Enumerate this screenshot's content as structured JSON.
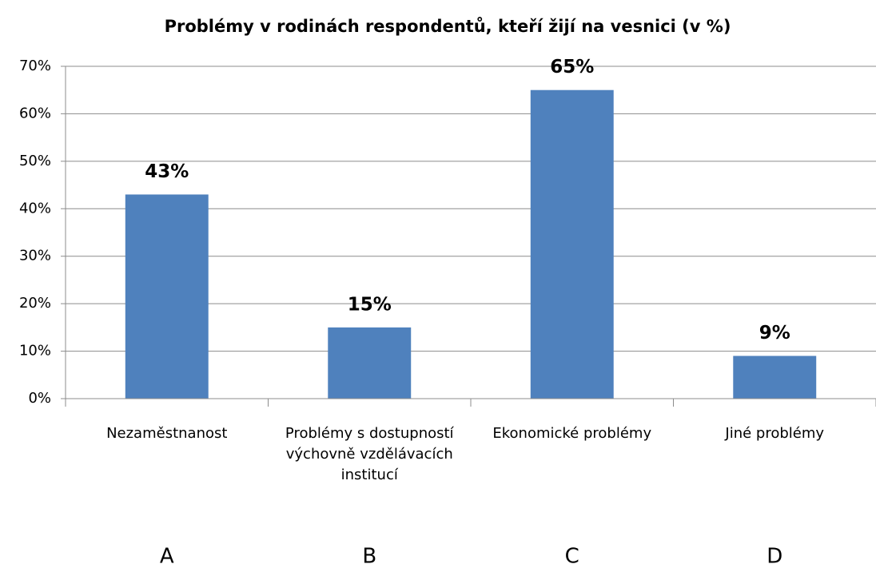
{
  "chart_data": {
    "type": "bar",
    "title": "Problémy v rodinách respondentů, kteří žijí na vesnici (v %)",
    "categories": [
      "Nezaměstnanost",
      "Problémy s dostupností výchovně vzdělávacích institucí",
      "Ekonomické problémy",
      "Jiné problémy"
    ],
    "category_letters": [
      "A",
      "B",
      "C",
      "D"
    ],
    "values": [
      43,
      15,
      65,
      9
    ],
    "value_labels": [
      "43%",
      "15%",
      "65%",
      "9%"
    ],
    "color": "#4f81bd",
    "ylim": [
      0,
      70
    ],
    "yticks": [
      {
        "value": 0,
        "label": "0%"
      },
      {
        "value": 10,
        "label": "10%"
      },
      {
        "value": 20,
        "label": "20%"
      },
      {
        "value": 30,
        "label": "30%"
      },
      {
        "value": 40,
        "label": "40%"
      },
      {
        "value": 50,
        "label": "50%"
      },
      {
        "value": 60,
        "label": "60%"
      },
      {
        "value": 70,
        "label": "70%"
      }
    ],
    "grid": true
  }
}
